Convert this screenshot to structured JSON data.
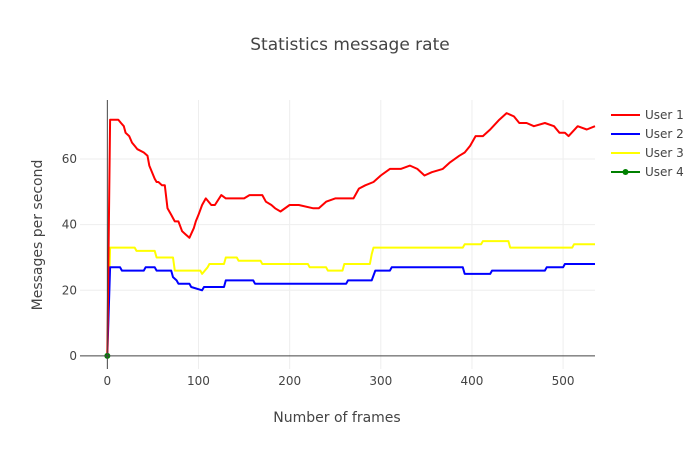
{
  "chart_data": {
    "type": "line",
    "title": "Statistics message rate",
    "xlabel": "Number of frames",
    "ylabel": "Messages per second",
    "xlim": [
      -30,
      535
    ],
    "ylim": [
      -4,
      78
    ],
    "xticks": [
      0,
      100,
      200,
      300,
      400,
      500
    ],
    "yticks": [
      0,
      20,
      40,
      60
    ],
    "xtick_labels": [
      "0",
      "100",
      "200",
      "300",
      "400",
      "500"
    ],
    "ytick_labels": [
      "0",
      "20",
      "40",
      "60"
    ],
    "grid": true,
    "legend": "top-right",
    "series": [
      {
        "name": "User 1",
        "color": "#ff0000",
        "mode": "lines",
        "x": [
          0,
          3,
          12,
          15,
          18,
          20,
          24,
          27,
          30,
          33,
          40,
          44,
          46,
          52,
          54,
          56,
          60,
          63,
          66,
          70,
          72,
          74,
          78,
          82,
          86,
          90,
          95,
          97,
          100,
          104,
          108,
          114,
          118,
          125,
          130,
          134,
          150,
          156,
          170,
          174,
          180,
          184,
          190,
          200,
          210,
          226,
          232,
          240,
          250,
          262,
          270,
          276,
          283,
          292,
          300,
          310,
          322,
          332,
          340,
          348,
          356,
          368,
          376,
          386,
          392,
          398,
          404,
          412,
          420,
          430,
          438,
          446,
          452,
          460,
          468,
          480,
          490,
          496,
          502,
          506,
          516,
          526,
          535
        ],
        "y": [
          0,
          72,
          72,
          71,
          70,
          68,
          67,
          65,
          64,
          63,
          62,
          61,
          58,
          54,
          53,
          53,
          52,
          52,
          45,
          43,
          42,
          41,
          41,
          38,
          37,
          36,
          39,
          41,
          43,
          46,
          48,
          46,
          46,
          49,
          48,
          48,
          48,
          49,
          49,
          47,
          46,
          45,
          44,
          46,
          46,
          45,
          45,
          47,
          48,
          48,
          48,
          51,
          52,
          53,
          55,
          57,
          57,
          58,
          57,
          55,
          56,
          57,
          59,
          61,
          62,
          64,
          67,
          67,
          69,
          72,
          74,
          73,
          71,
          71,
          70,
          71,
          70,
          68,
          68,
          67,
          70,
          69,
          70
        ]
      },
      {
        "name": "User 2",
        "color": "#0000ff",
        "mode": "lines",
        "x": [
          0,
          3,
          14,
          16,
          40,
          42,
          52,
          54,
          70,
          72,
          76,
          78,
          90,
          92,
          104,
          106,
          128,
          130,
          160,
          162,
          262,
          264,
          290,
          294,
          310,
          312,
          390,
          392,
          420,
          422,
          480,
          482,
          500,
          502,
          535
        ],
        "y": [
          0,
          27,
          27,
          26,
          26,
          27,
          27,
          26,
          26,
          24,
          23,
          22,
          22,
          21,
          20,
          21,
          21,
          23,
          23,
          22,
          22,
          23,
          23,
          26,
          26,
          27,
          27,
          25,
          25,
          26,
          26,
          27,
          27,
          28,
          28
        ],
        "markers": false
      },
      {
        "name": "User 3",
        "color": "#ffff00",
        "mode": "lines",
        "x": [
          0,
          3,
          30,
          32,
          52,
          54,
          72,
          74,
          102,
          104,
          110,
          112,
          128,
          130,
          142,
          144,
          168,
          170,
          188,
          190,
          220,
          222,
          240,
          242,
          258,
          260,
          288,
          290,
          290,
          292,
          390,
          392,
          410,
          412,
          440,
          442,
          510,
          512,
          535
        ],
        "y": [
          0,
          33,
          33,
          32,
          32,
          30,
          30,
          26,
          26,
          25,
          27,
          28,
          28,
          30,
          30,
          29,
          29,
          28,
          28,
          28,
          28,
          27,
          27,
          26,
          26,
          28,
          28,
          31,
          31,
          33,
          33,
          34,
          34,
          35,
          35,
          33,
          33,
          34,
          34
        ]
      },
      {
        "name": "User 4",
        "color": "#008000",
        "mode": "lines+markers",
        "x": [
          0
        ],
        "y": [
          0
        ]
      }
    ]
  }
}
